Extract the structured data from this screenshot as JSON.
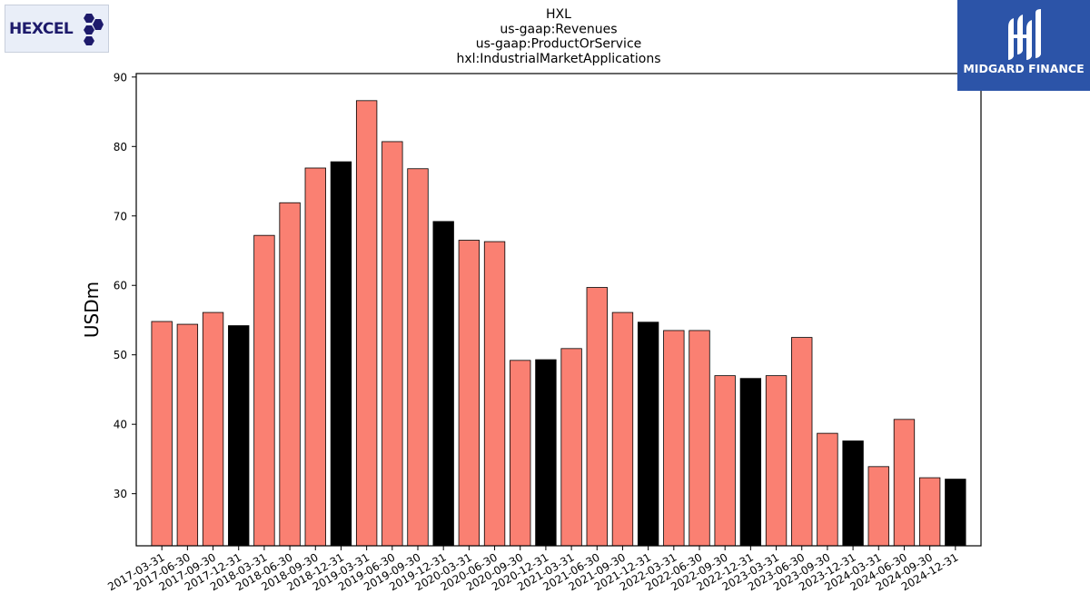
{
  "logos": {
    "left_text": "HEXCEL",
    "right_text": "MIDGARD FINANCE"
  },
  "chart_data": {
    "type": "bar",
    "title_lines": [
      "HXL",
      "us-gaap:Revenues",
      "us-gaap:ProductOrService",
      "hxl:IndustrialMarketApplications"
    ],
    "xlabel": "",
    "ylabel": "USDm",
    "ylim": [
      22.5,
      90.5
    ],
    "yticks": [
      30,
      40,
      50,
      60,
      70,
      80,
      90
    ],
    "grid": false,
    "colors": {
      "quarter": "#fa8072",
      "year_end": "#000000",
      "edge": "#000000"
    },
    "categories": [
      "2017-03-31",
      "2017-06-30",
      "2017-09-30",
      "2017-12-31",
      "2018-03-31",
      "2018-06-30",
      "2018-09-30",
      "2018-12-31",
      "2019-03-31",
      "2019-06-30",
      "2019-09-30",
      "2019-12-31",
      "2020-03-31",
      "2020-06-30",
      "2020-09-30",
      "2020-12-31",
      "2021-03-31",
      "2021-06-30",
      "2021-09-30",
      "2021-12-31",
      "2022-03-31",
      "2022-06-30",
      "2022-09-30",
      "2022-12-31",
      "2023-03-31",
      "2023-06-30",
      "2023-09-30",
      "2023-12-31",
      "2024-03-31",
      "2024-06-30",
      "2024-09-30",
      "2024-12-31"
    ],
    "values": [
      54.8,
      54.4,
      56.1,
      54.2,
      67.2,
      71.9,
      76.9,
      77.8,
      86.6,
      80.7,
      76.8,
      69.2,
      66.5,
      66.3,
      49.2,
      49.3,
      50.9,
      59.7,
      56.1,
      54.7,
      53.5,
      53.5,
      47.0,
      46.6,
      47.0,
      52.5,
      38.7,
      37.6,
      33.9,
      40.7,
      32.3,
      32.1
    ]
  }
}
